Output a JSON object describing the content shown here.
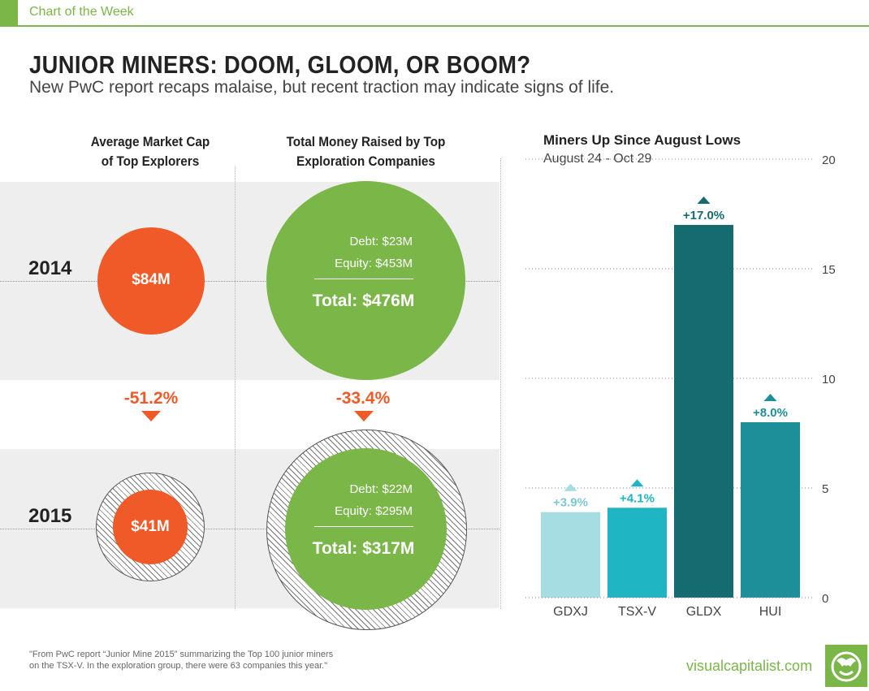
{
  "header": {
    "tag": "Chart of the Week",
    "title": "JUNIOR MINERS: DOOM, GLOOM, OR BOOM?",
    "subtitle": "New PwC report recaps malaise, but recent traction may indicate signs of life."
  },
  "left": {
    "col1_title": [
      "Average Market Cap",
      "of Top Explorers"
    ],
    "col2_title": [
      "Total Money Raised by Top",
      "Exploration Companies"
    ],
    "years": [
      "2014",
      "2015"
    ],
    "market_cap": {
      "y2014": "$84M",
      "y2015": "$41M",
      "change": "-51.2%"
    },
    "money_raised": {
      "y2014": {
        "debt": "Debt: $23M",
        "equity": "Equity: $453M",
        "total": "Total: $476M"
      },
      "y2015": {
        "debt": "Debt: $22M",
        "equity": "Equity: $295M",
        "total": "Total: $317M"
      },
      "change": "-33.4%"
    },
    "colors": {
      "orange": "#f05a28",
      "green": "#7ab648",
      "band": "#eeeeee"
    }
  },
  "right": {
    "title": "Miners Up Since August Lows",
    "subtitle": "August 24 - Oct 29"
  },
  "chart_data": {
    "type": "bar",
    "title": "Miners Up Since August Lows",
    "subtitle": "August 24 - Oct 29",
    "categories": [
      "GDXJ",
      "TSX-V",
      "GLDX",
      "HUI"
    ],
    "values": [
      3.9,
      4.1,
      17.0,
      8.0
    ],
    "labels": [
      "+3.9%",
      "+4.1%",
      "+17.0%",
      "+8.0%"
    ],
    "colors": [
      "#a6dde3",
      "#1fb5c2",
      "#156b70",
      "#1c8f98"
    ],
    "yticks": [
      "0",
      "5",
      "10",
      "15",
      "20"
    ],
    "ylim": [
      0,
      20
    ],
    "y_axis_side": "right",
    "grid": true
  },
  "footer": {
    "note_line1": "\"From PwC report “Junior Mine 2015” summarizing the Top 100 junior miners",
    "note_line2": "on the TSX-V. In the exploration group, there were 63 companies this year.\"",
    "brand": "visualcapitalist.com",
    "logo_icon": "visual-capitalist-logo-icon"
  }
}
